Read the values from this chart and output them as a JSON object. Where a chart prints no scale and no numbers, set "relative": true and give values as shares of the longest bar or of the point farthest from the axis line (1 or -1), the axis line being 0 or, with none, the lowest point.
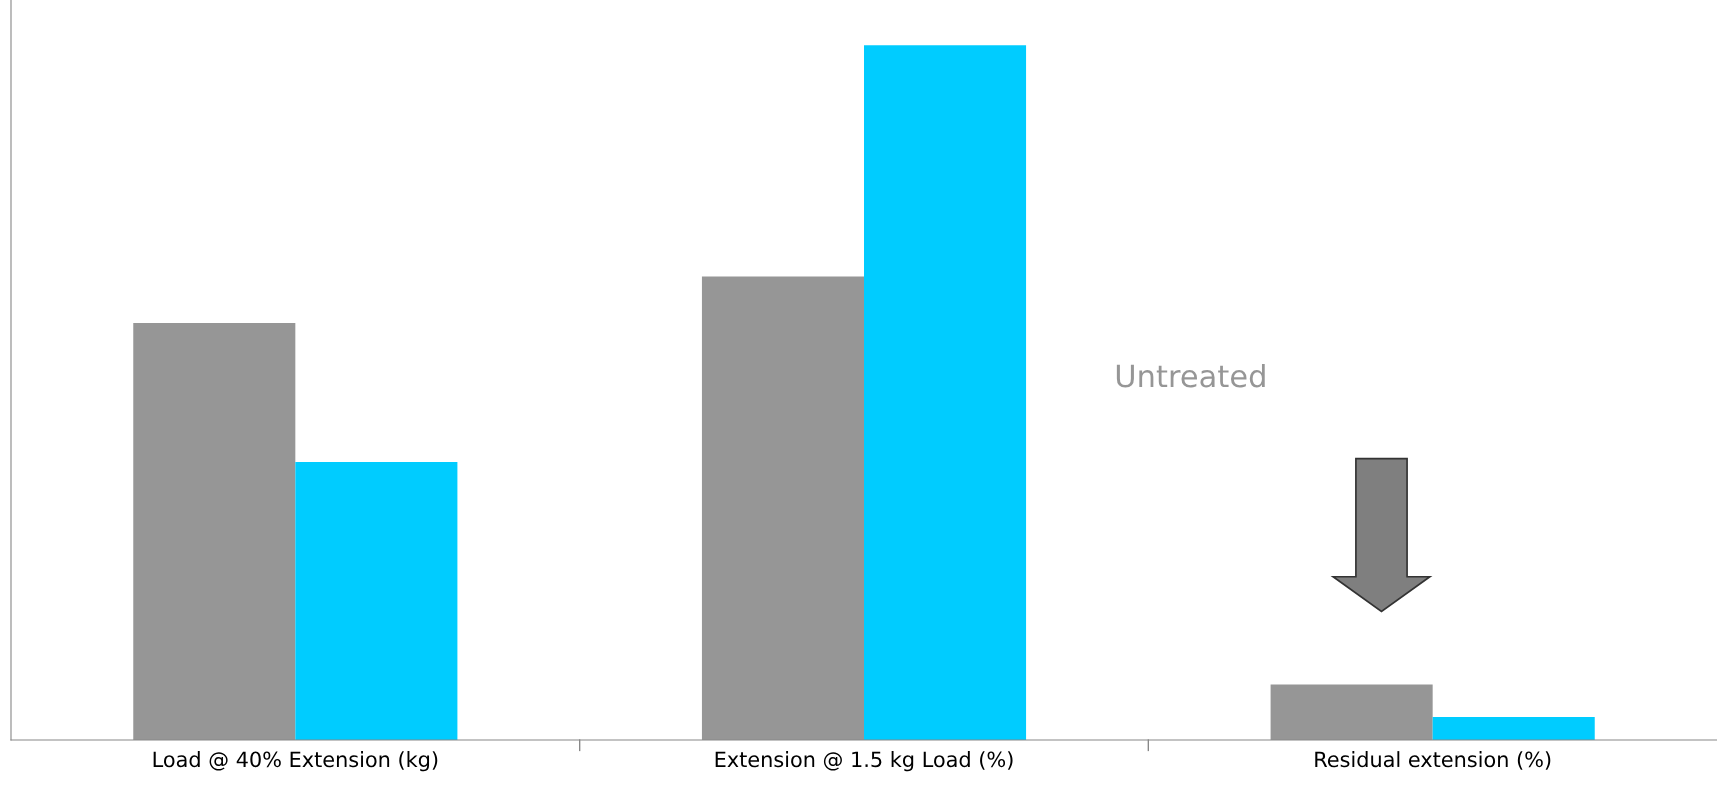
{
  "chart_data": {
    "type": "bar",
    "relative": true,
    "categories": [
      "Load @ 40% Extension (kg)",
      "Extension @ 1.5 kg Load (%)",
      "Residual extension (%)"
    ],
    "series": [
      {
        "name": "Untreated",
        "color": "#969696",
        "values": [
          0.6,
          0.667,
          0.08
        ]
      },
      {
        "color": "#00ccff",
        "values": [
          0.4,
          1,
          0.033
        ]
      }
    ],
    "grid": false,
    "legend": false
  }
}
